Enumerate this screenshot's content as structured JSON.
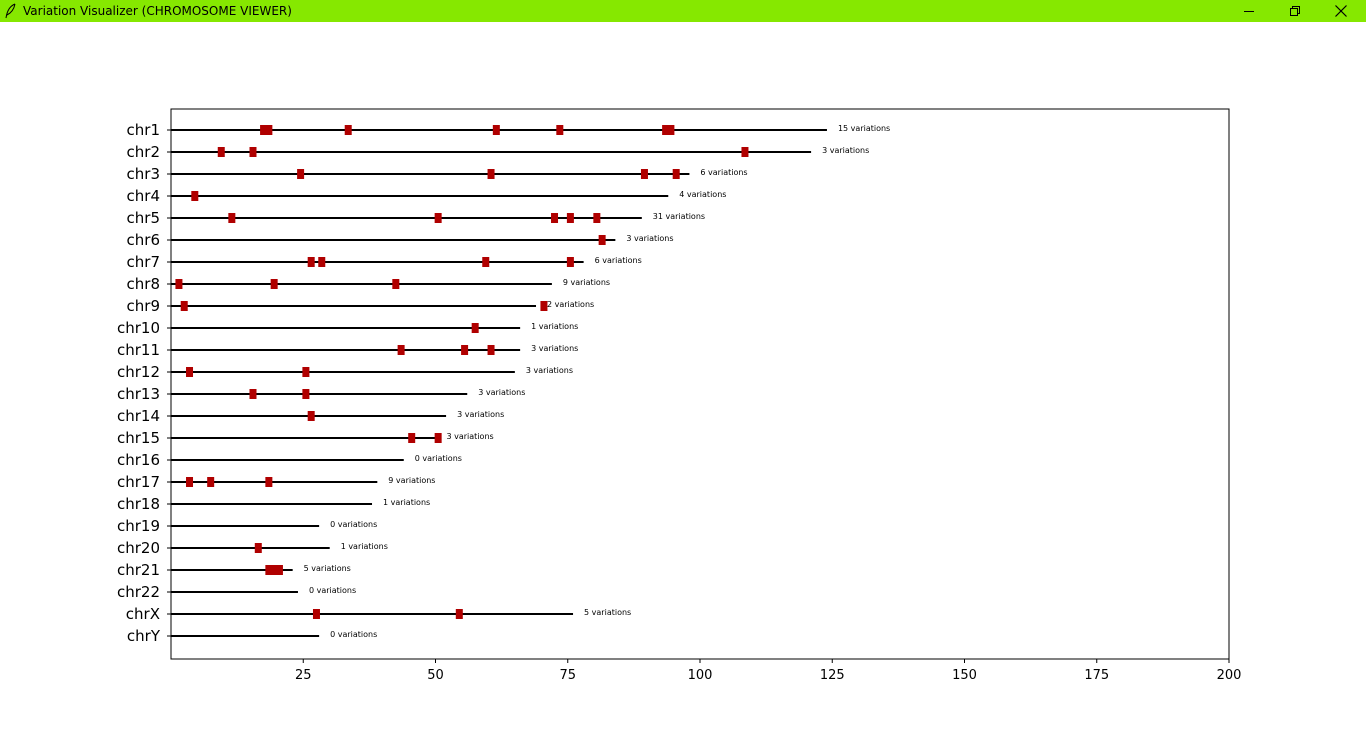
{
  "window": {
    "title": "Variation Visualizer (CHROMOSOME VIEWER)",
    "app_icon": "feather-icon",
    "controls": [
      "minimize-icon",
      "restore-icon",
      "close-icon"
    ],
    "titlebar_color": "#86e800"
  },
  "colors": {
    "axis_line": "#000000",
    "chromosome_line": "#000000",
    "variation_marker": "#b00000"
  },
  "chart_data": {
    "type": "scatter",
    "description_style": "horizontal chromosome lines with variation markers",
    "xlim": [
      0,
      200
    ],
    "x_ticks": [
      25,
      50,
      75,
      100,
      125,
      150,
      175,
      200
    ],
    "grid": false,
    "chromosomes": [
      {
        "name": "chr1",
        "length": 124,
        "count_label": "15 variations",
        "variations": [
          16,
          17,
          32,
          60,
          72,
          92,
          93
        ]
      },
      {
        "name": "chr2",
        "length": 121,
        "count_label": "3 variations",
        "variations": [
          8,
          14,
          107
        ]
      },
      {
        "name": "chr3",
        "length": 98,
        "count_label": "6 variations",
        "variations": [
          23,
          59,
          88,
          94
        ]
      },
      {
        "name": "chr4",
        "length": 94,
        "count_label": "4 variations",
        "variations": [
          3
        ]
      },
      {
        "name": "chr5",
        "length": 89,
        "count_label": "31 variations",
        "variations": [
          10,
          49,
          71,
          74,
          79
        ]
      },
      {
        "name": "chr6",
        "length": 84,
        "count_label": "3 variations",
        "variations": [
          80
        ]
      },
      {
        "name": "chr7",
        "length": 78,
        "count_label": "6 variations",
        "variations": [
          25,
          27,
          58,
          74
        ]
      },
      {
        "name": "chr8",
        "length": 72,
        "count_label": "9 variations",
        "variations": [
          0,
          18,
          41
        ]
      },
      {
        "name": "chr9",
        "length": 69,
        "count_label": "2 variations",
        "variations": [
          1,
          69
        ]
      },
      {
        "name": "chr10",
        "length": 66,
        "count_label": "1 variations",
        "variations": [
          56
        ]
      },
      {
        "name": "chr11",
        "length": 66,
        "count_label": "3 variations",
        "variations": [
          42,
          54,
          59
        ]
      },
      {
        "name": "chr12",
        "length": 65,
        "count_label": "3 variations",
        "variations": [
          2,
          24
        ]
      },
      {
        "name": "chr13",
        "length": 56,
        "count_label": "3 variations",
        "variations": [
          14,
          24
        ]
      },
      {
        "name": "chr14",
        "length": 52,
        "count_label": "3 variations",
        "variations": [
          25
        ]
      },
      {
        "name": "chr15",
        "length": 50,
        "count_label": "3 variations",
        "variations": [
          44,
          49
        ]
      },
      {
        "name": "chr16",
        "length": 44,
        "count_label": "0 variations",
        "variations": []
      },
      {
        "name": "chr17",
        "length": 39,
        "count_label": "9 variations",
        "variations": [
          2,
          6,
          17
        ]
      },
      {
        "name": "chr18",
        "length": 38,
        "count_label": "1 variations",
        "variations": []
      },
      {
        "name": "chr19",
        "length": 28,
        "count_label": "0 variations",
        "variations": []
      },
      {
        "name": "chr20",
        "length": 30,
        "count_label": "1 variations",
        "variations": [
          15
        ]
      },
      {
        "name": "chr21",
        "length": 23,
        "count_label": "5 variations",
        "variations": [
          17,
          18,
          19
        ]
      },
      {
        "name": "chr22",
        "length": 24,
        "count_label": "0 variations",
        "variations": []
      },
      {
        "name": "chrX",
        "length": 76,
        "count_label": "5 variations",
        "variations": [
          26,
          53
        ]
      },
      {
        "name": "chrY",
        "length": 28,
        "count_label": "0 variations",
        "variations": []
      }
    ]
  }
}
